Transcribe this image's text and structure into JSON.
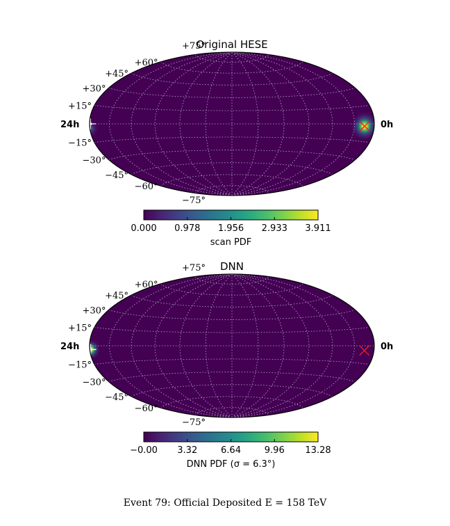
{
  "figure": {
    "caption": "Event 79: Official Deposited E = 158 TeV"
  },
  "chart_data": [
    {
      "type": "heatmap",
      "projection": "hammer",
      "title": "Original HESE",
      "colormap": "viridis",
      "ra_labels": [
        "24h",
        "0h"
      ],
      "dec_tick_labels": [
        "+75°",
        "+60°",
        "+45°",
        "+30°",
        "+15°",
        "−15°",
        "−30°",
        "−45°",
        "−60°",
        "−75°"
      ],
      "grid": true,
      "hotspots": [
        {
          "ra_hours": 1.0,
          "dec_deg": -2.0,
          "sigma_deg": 5.0,
          "peak": 3.911
        },
        {
          "ra_hours": 23.95,
          "dec_deg": -4.0,
          "sigma_deg": 3.0,
          "peak": 1.0
        }
      ],
      "markers": [
        {
          "kind": "x",
          "ra_hours": 1.0,
          "dec_deg": -2.0,
          "color": "#e8232a"
        },
        {
          "kind": "plus",
          "ra_hours": 23.9,
          "dec_deg": 0.0,
          "color": "#ffffff"
        }
      ],
      "colorbar": {
        "label": "scan PDF",
        "min": 0.0,
        "max": 3.911,
        "ticks": [
          "0.000",
          "0.978",
          "1.956",
          "2.933",
          "3.911"
        ]
      }
    },
    {
      "type": "heatmap",
      "projection": "hammer",
      "title": "DNN",
      "colormap": "viridis",
      "ra_labels": [
        "24h",
        "0h"
      ],
      "dec_tick_labels": [
        "+75°",
        "+60°",
        "+45°",
        "+30°",
        "+15°",
        "−15°",
        "−30°",
        "−45°",
        "−60°",
        "−75°"
      ],
      "grid": true,
      "hotspots": [
        {
          "ra_hours": 23.9,
          "dec_deg": -3.0,
          "sigma_deg": 3.5,
          "peak": 13.28
        }
      ],
      "markers": [
        {
          "kind": "x",
          "ra_hours": 1.0,
          "dec_deg": -4.0,
          "color": "#e8232a"
        },
        {
          "kind": "plus",
          "ra_hours": 23.9,
          "dec_deg": -3.0,
          "color": "#ffffff"
        }
      ],
      "colorbar": {
        "label": "DNN PDF (σ = 6.3°)",
        "min": 0.0,
        "max": 13.28,
        "ticks": [
          "−0.00",
          "3.32",
          "6.64",
          "9.96",
          "13.28"
        ]
      }
    }
  ]
}
